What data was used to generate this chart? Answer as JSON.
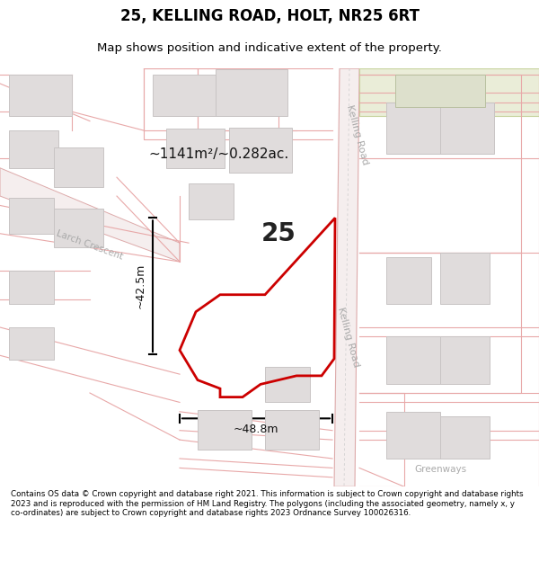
{
  "title": "25, KELLING ROAD, HOLT, NR25 6RT",
  "subtitle": "Map shows position and indicative extent of the property.",
  "footer": "Contains OS data © Crown copyright and database right 2021. This information is subject to Crown copyright and database rights 2023 and is reproduced with the permission of HM Land Registry. The polygons (including the associated geometry, namely x, y co-ordinates) are subject to Crown copyright and database rights 2023 Ordnance Survey 100026316.",
  "plot_outline_color": "#cc0000",
  "plot_number": "25",
  "area_label": "~1141m²/~0.282ac.",
  "dim_h": "~42.5m",
  "dim_w": "~48.8m",
  "road_label_kelling1": "Kelling Road",
  "road_label_kelling2": "Kelling Road",
  "road_label_larch": "Larch Crescent",
  "road_label_greenways": "Greenways",
  "map_bg": "#faf8f8",
  "building_fill": "#e0dcdc",
  "building_edge": "#c8c4c4",
  "road_line_color": "#e8a8a8",
  "road_fill": "#f8efef",
  "road_edge": "#ddaaaa"
}
